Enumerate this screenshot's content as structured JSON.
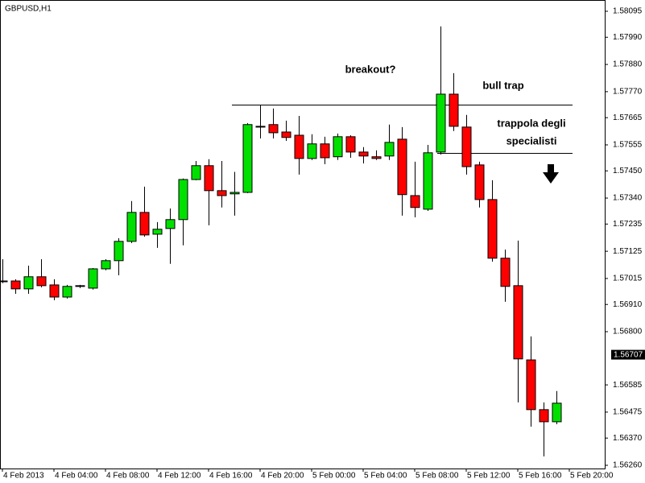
{
  "chart_data": {
    "type": "candlestick",
    "title": "GBPUSD,H1",
    "categories": [
      "4 Feb 2013",
      null,
      null,
      null,
      "4 Feb 04:00",
      null,
      null,
      null,
      "4 Feb 08:00",
      null,
      null,
      null,
      "4 Feb 12:00",
      null,
      null,
      null,
      "4 Feb 16:00",
      null,
      null,
      null,
      "4 Feb 20:00",
      null,
      null,
      null,
      "5 Feb 00:00",
      null,
      null,
      null,
      "5 Feb 04:00",
      null,
      null,
      null,
      "5 Feb 08:00",
      null,
      null,
      null,
      "5 Feb 12:00",
      null,
      null,
      null,
      "5 Feb 16:00",
      null,
      null,
      null,
      "5 Feb 20:00"
    ],
    "open": [
      1.57005,
      1.57005,
      1.56973,
      1.57022,
      1.56989,
      1.5694,
      1.56983,
      1.56976,
      1.57054,
      1.57087,
      1.57165,
      1.57282,
      1.57194,
      1.57217,
      1.57253,
      1.57415,
      1.57471,
      1.5737,
      1.57357,
      1.57363,
      1.5763,
      1.57637,
      1.57607,
      1.57594,
      1.575,
      1.57559,
      1.57507,
      1.57588,
      1.57526,
      1.57507,
      1.5751,
      1.57578,
      1.5735,
      1.57295,
      1.57526,
      1.5776,
      1.57627,
      1.57474,
      1.57334,
      1.57097,
      1.56986,
      1.56686,
      1.56485,
      1.56436,
      null
    ],
    "high": [
      1.57093,
      1.57012,
      1.57067,
      1.57093,
      1.57012,
      1.56989,
      1.56989,
      1.57057,
      1.57093,
      1.57178,
      1.57328,
      1.57386,
      1.57243,
      1.57298,
      1.57419,
      1.5749,
      1.57497,
      1.5749,
      1.57446,
      1.57643,
      1.57715,
      1.57702,
      1.57653,
      1.57672,
      1.57598,
      1.57588,
      1.57601,
      1.57594,
      1.57546,
      1.57533,
      1.57637,
      1.57627,
      1.57487,
      1.57555,
      1.58034,
      1.57845,
      1.57676,
      1.57487,
      1.57412,
      1.57132,
      1.57168,
      1.56781,
      1.56514,
      1.5656,
      null
    ],
    "low": [
      1.56996,
      1.56953,
      1.56953,
      1.56979,
      1.56927,
      1.56934,
      1.56976,
      1.5697,
      1.57048,
      1.57028,
      1.57158,
      1.57184,
      1.57139,
      1.57074,
      1.57149,
      1.57412,
      1.5723,
      1.57302,
      1.57269,
      1.5736,
      1.57581,
      1.57581,
      1.57571,
      1.57435,
      1.57494,
      1.57477,
      1.57494,
      1.57503,
      1.5748,
      1.57494,
      1.57494,
      1.57269,
      1.57262,
      1.57288,
      1.57516,
      1.57611,
      1.57435,
      1.57302,
      1.57083,
      1.56921,
      1.56514,
      1.56416,
      1.56296,
      1.56426,
      null
    ],
    "close": [
      1.57003,
      1.56973,
      1.57022,
      1.56986,
      1.5694,
      1.56983,
      1.56986,
      1.57054,
      1.57087,
      1.57165,
      1.57282,
      1.57191,
      1.57214,
      1.57253,
      1.57415,
      1.57471,
      1.5737,
      1.5735,
      1.57363,
      1.57637,
      1.57627,
      1.57604,
      1.57585,
      1.575,
      1.57559,
      1.57503,
      1.57588,
      1.57526,
      1.5751,
      1.575,
      1.57565,
      1.57354,
      1.57302,
      1.57523,
      1.5776,
      1.5763,
      1.57467,
      1.57334,
      1.57097,
      1.56983,
      1.5669,
      1.56485,
      1.56436,
      1.56511,
      null
    ],
    "up_color": "#00e000",
    "down_color": "#ff0000",
    "ylim": [
      1.56247,
      1.58134
    ],
    "yticks": [
      1.58095,
      {
        "value": 1.5799,
        "label": "1.57990"
      },
      {
        "value": 1.5788,
        "label": "1.57880"
      },
      {
        "value": 1.5777,
        "label": "1.57770"
      },
      1.57665,
      1.57555,
      {
        "value": 1.5745,
        "label": "1.57450"
      },
      {
        "value": 1.5734,
        "label": "1.57340"
      },
      1.57235,
      1.57125,
      1.57015,
      {
        "value": 1.5691,
        "label": "1.56910"
      },
      {
        "value": 1.568,
        "label": "1.56800"
      },
      1.56585,
      1.56475,
      {
        "value": 1.5637,
        "label": "1.56370"
      },
      {
        "value": 1.5626,
        "label": "1.56260"
      }
    ],
    "current_price": 1.56707,
    "levels": [
      1.57718,
      1.57523
    ],
    "annotations": [
      "breakout?",
      "bull trap",
      "trappola degli",
      "specialisti"
    ],
    "grid": false
  }
}
